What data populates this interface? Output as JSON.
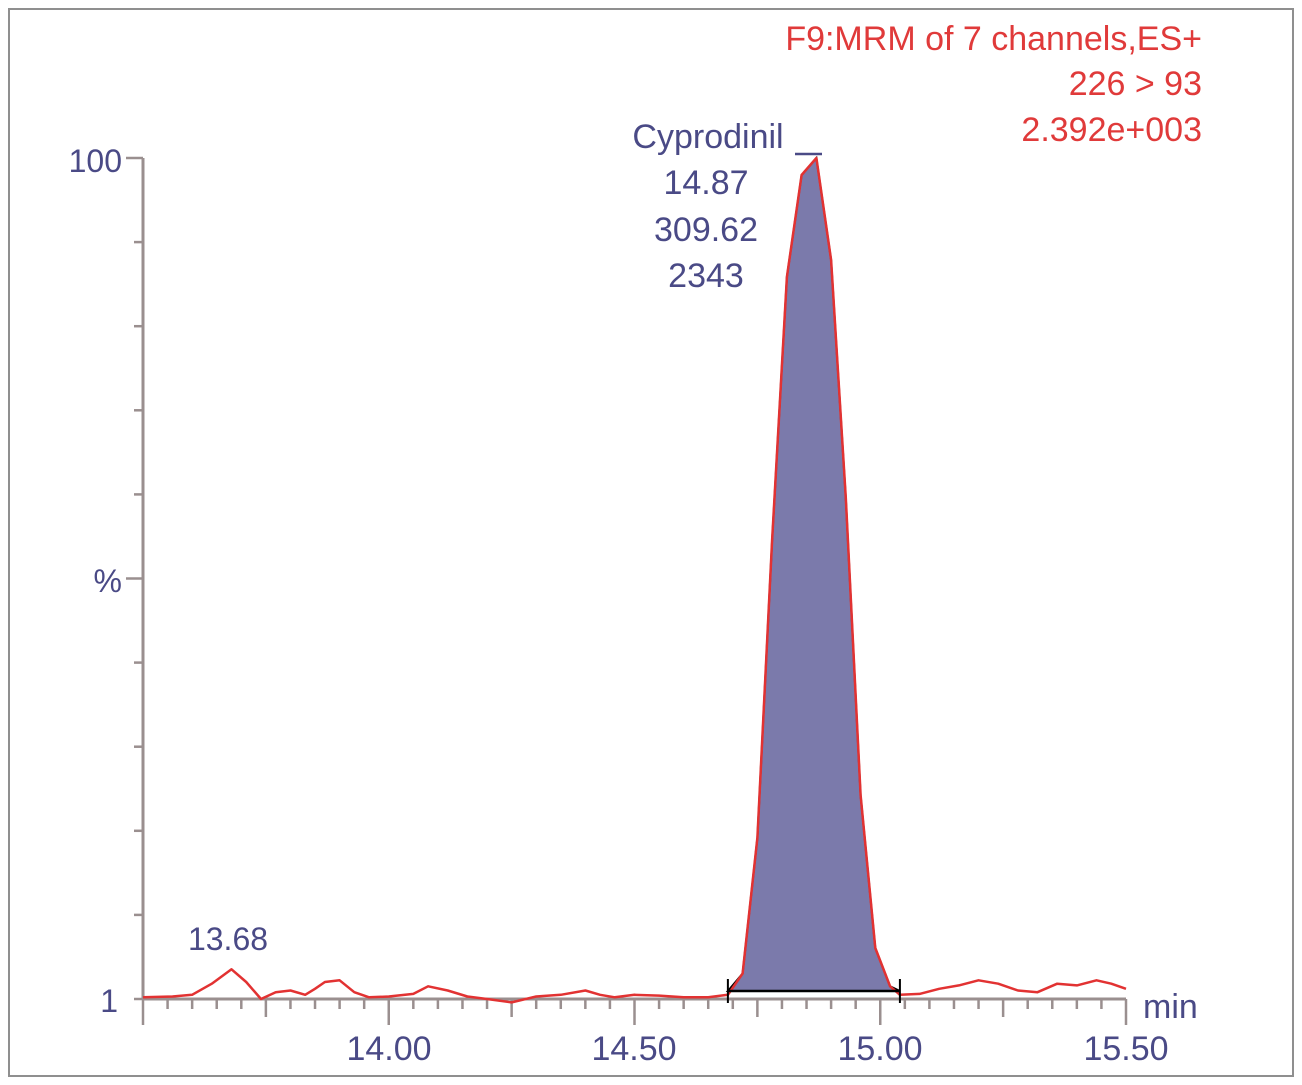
{
  "chart_data": {
    "type": "line",
    "header": {
      "function": "F9:MRM of 7 channels,ES+",
      "transition": "226 > 93",
      "intensity": "2.392e+003"
    },
    "x_unit": "min",
    "y_axis_label": "%",
    "y_tick_labels": [
      "100",
      "1"
    ],
    "x_tick_labels": [
      "14.00",
      "14.50",
      "15.00",
      "15.50"
    ],
    "xlim": [
      13.5,
      15.5
    ],
    "ylim": [
      1,
      100
    ],
    "peak": {
      "compound": "Cyprodinil",
      "rt": "14.87",
      "area": "309.62",
      "height": "2343",
      "start": 14.69,
      "end": 15.04
    },
    "minor_peak": {
      "rt_label": "13.68",
      "rt": 13.68
    },
    "series": [
      {
        "x": [
          13.5,
          13.56,
          13.6,
          13.64,
          13.68,
          13.71,
          13.74,
          13.77,
          13.8,
          13.83,
          13.85,
          13.87,
          13.9,
          13.93,
          13.96,
          14.0,
          14.05,
          14.08,
          14.12,
          14.16,
          14.2,
          14.25,
          14.3,
          14.35,
          14.4,
          14.43,
          14.46,
          14.5,
          14.55,
          14.6,
          14.65,
          14.69,
          14.72,
          14.75,
          14.78,
          14.81,
          14.84,
          14.87,
          14.9,
          14.93,
          14.96,
          14.99,
          15.02,
          15.04,
          15.08,
          15.12,
          15.16,
          15.2,
          15.24,
          15.28,
          15.32,
          15.36,
          15.4,
          15.44,
          15.47,
          15.5
        ],
        "y": [
          1.2,
          1.3,
          1.5,
          2.8,
          4.5,
          3.0,
          1.0,
          1.8,
          2.0,
          1.5,
          2.2,
          3.0,
          3.2,
          1.8,
          1.2,
          1.3,
          1.6,
          2.5,
          2.0,
          1.3,
          1.0,
          0.6,
          1.3,
          1.5,
          2.0,
          1.5,
          1.2,
          1.5,
          1.4,
          1.2,
          1.2,
          1.5,
          4.0,
          20.0,
          55.0,
          86.0,
          98.0,
          100.0,
          88.0,
          60.0,
          25.0,
          7.0,
          2.5,
          1.5,
          1.6,
          2.2,
          2.6,
          3.2,
          2.8,
          2.0,
          1.8,
          2.8,
          2.6,
          3.2,
          2.8,
          2.2
        ],
        "color": "#e23232"
      }
    ],
    "colors": {
      "trace": "#e23232",
      "header_text": "#e03a3a",
      "peak_fill": "#7b7aab",
      "label_text": "#4a4a86",
      "axis": "#9a8f8f",
      "frame": "#8f8f8f"
    }
  }
}
